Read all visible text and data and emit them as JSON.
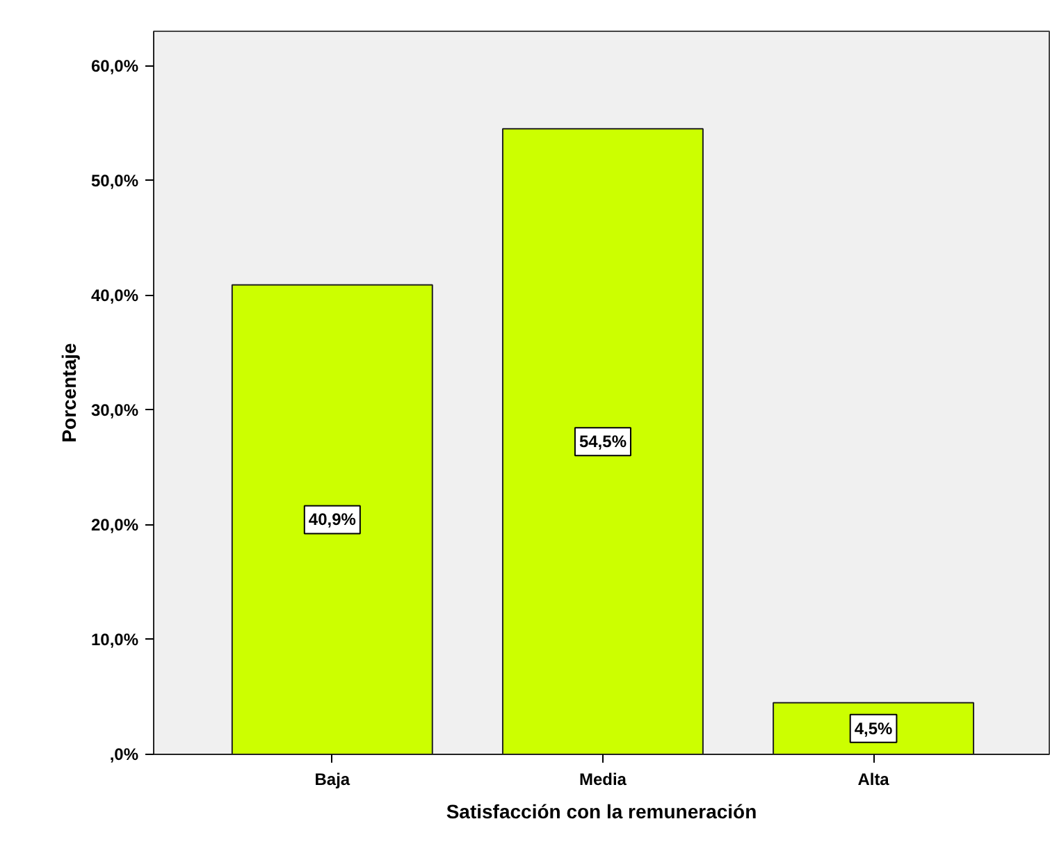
{
  "chart_data": {
    "type": "bar",
    "xlabel": "Satisfacción con la remuneración",
    "ylabel": "Porcentaje",
    "categories": [
      "Baja",
      "Media",
      "Alta"
    ],
    "values": [
      40.9,
      54.5,
      4.5
    ],
    "value_labels": [
      "40,9%",
      "54,5%",
      "4,5%"
    ],
    "color": "#ccff00",
    "ylim": [
      0,
      63
    ],
    "yticks": [
      {
        "value": 0,
        "label": ",0%"
      },
      {
        "value": 10,
        "label": "10,0%"
      },
      {
        "value": 20,
        "label": "20,0%"
      },
      {
        "value": 30,
        "label": "30,0%"
      },
      {
        "value": 40,
        "label": "40,0%"
      },
      {
        "value": 50,
        "label": "50,0%"
      },
      {
        "value": 60,
        "label": "60,0%"
      }
    ],
    "grid": false
  }
}
